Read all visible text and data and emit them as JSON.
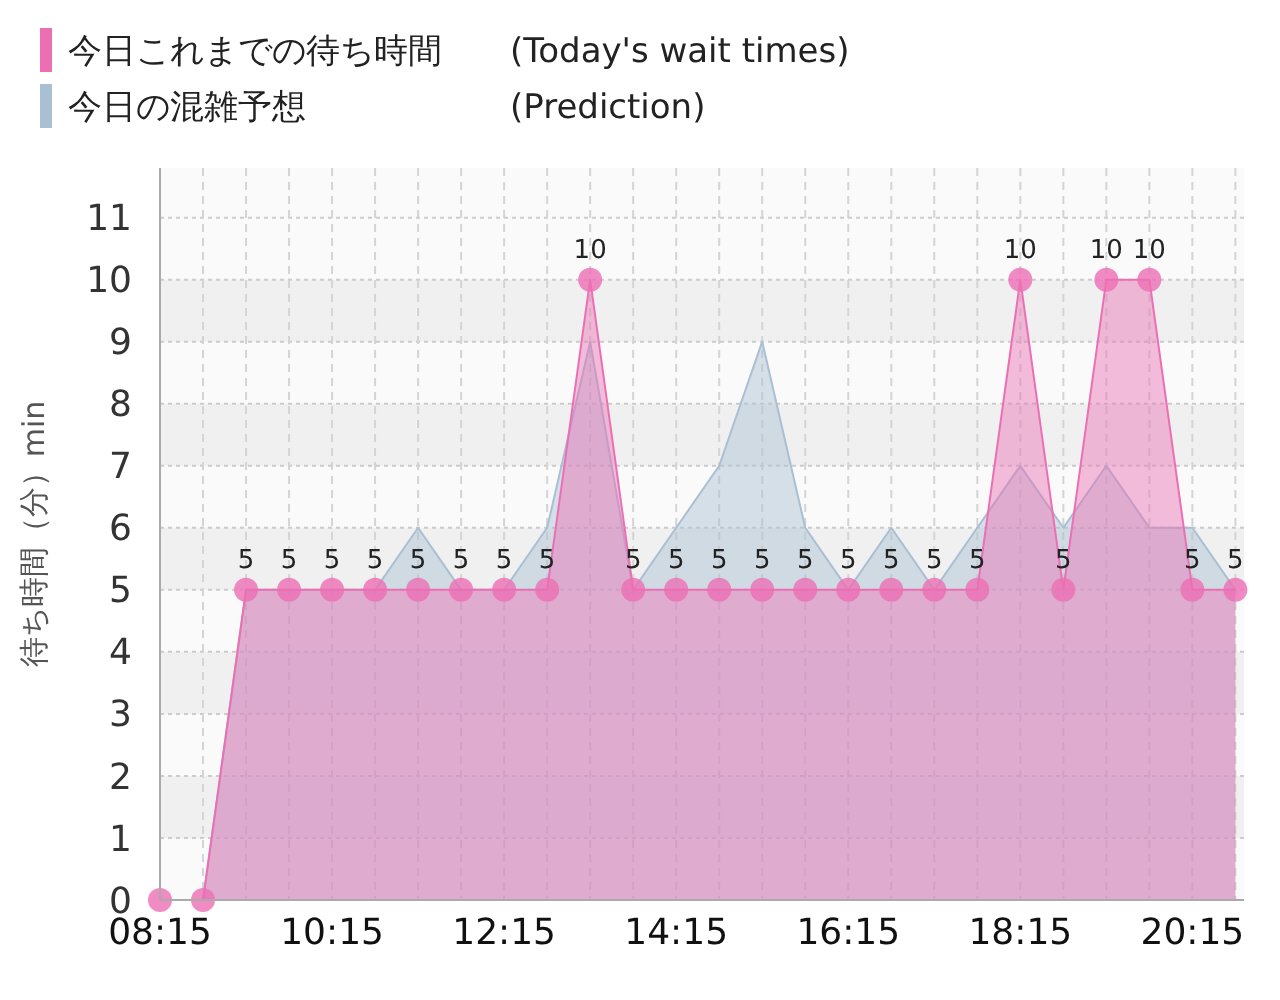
{
  "chart_data": {
    "type": "area",
    "ylabel": "待ち時間（分）min",
    "x": [
      8.25,
      8.75,
      9.25,
      9.75,
      10.25,
      10.75,
      11.25,
      11.75,
      12.25,
      12.75,
      13.25,
      13.75,
      14.25,
      14.75,
      15.25,
      15.75,
      16.25,
      16.75,
      17.25,
      17.75,
      18.25,
      18.75,
      19.25,
      19.75,
      20.25,
      20.75
    ],
    "series": [
      {
        "name": "今日の混雑予想　　　　　　(Prediction)",
        "color": "#a9bfd3",
        "marker": "none",
        "values": [
          0,
          0,
          5,
          5,
          5,
          5,
          6,
          5,
          5,
          6,
          9,
          5,
          6,
          7,
          9,
          6,
          5,
          6,
          5,
          6,
          7,
          6,
          7,
          6,
          6,
          5
        ]
      },
      {
        "name": "今日これまでの待ち時間　　(Today's wait times)",
        "color": "#ec6fb4",
        "marker": "circle",
        "values": [
          0,
          0,
          5,
          5,
          5,
          5,
          5,
          5,
          5,
          5,
          10,
          5,
          5,
          5,
          5,
          5,
          5,
          5,
          5,
          5,
          10,
          5,
          10,
          10,
          5,
          5
        ],
        "value_labels": [
          null,
          null,
          "5",
          "5",
          "5",
          "5",
          "5",
          "5",
          "5",
          "5",
          "10",
          "5",
          "5",
          "5",
          "5",
          "5",
          "5",
          "5",
          "5",
          "5",
          "10",
          "5",
          "10",
          "10",
          "5",
          "5"
        ]
      }
    ],
    "xlim": [
      8.25,
      20.85
    ],
    "xticks": [
      {
        "value": 8.25,
        "label": "08:15"
      },
      {
        "value": 8.75,
        "label": null
      },
      {
        "value": 9.25,
        "label": null
      },
      {
        "value": 9.75,
        "label": null
      },
      {
        "value": 10.25,
        "label": "10:15"
      },
      {
        "value": 10.75,
        "label": null
      },
      {
        "value": 11.25,
        "label": null
      },
      {
        "value": 11.75,
        "label": null
      },
      {
        "value": 12.25,
        "label": "12:15"
      },
      {
        "value": 12.75,
        "label": null
      },
      {
        "value": 13.25,
        "label": null
      },
      {
        "value": 13.75,
        "label": null
      },
      {
        "value": 14.25,
        "label": "14:15"
      },
      {
        "value": 14.75,
        "label": null
      },
      {
        "value": 15.25,
        "label": null
      },
      {
        "value": 15.75,
        "label": null
      },
      {
        "value": 16.25,
        "label": "16:15"
      },
      {
        "value": 16.75,
        "label": null
      },
      {
        "value": 17.25,
        "label": null
      },
      {
        "value": 17.75,
        "label": null
      },
      {
        "value": 18.25,
        "label": "18:15"
      },
      {
        "value": 18.75,
        "label": null
      },
      {
        "value": 19.25,
        "label": null
      },
      {
        "value": 19.75,
        "label": null
      },
      {
        "value": 20.25,
        "label": "20:15"
      },
      {
        "value": 20.75,
        "label": null
      }
    ],
    "ylim": [
      0,
      11.8
    ],
    "yticks": [
      0,
      1,
      2,
      3,
      4,
      5,
      6,
      7,
      8,
      9,
      10,
      11
    ],
    "grid": true,
    "legend": "top left"
  }
}
